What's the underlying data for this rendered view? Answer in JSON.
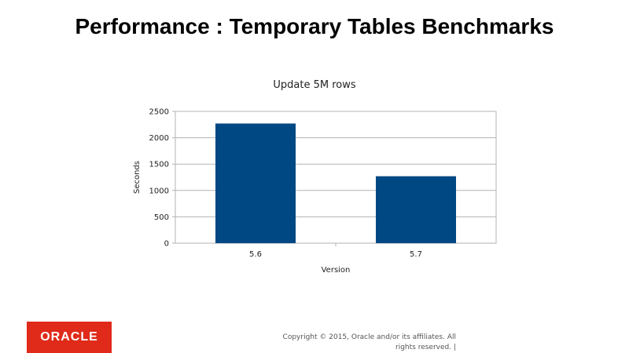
{
  "slide": {
    "title": "Performance : Temporary Tables Benchmarks"
  },
  "chart_data": {
    "type": "bar",
    "title": "Update 5M rows",
    "categories": [
      "5.6",
      "5.7"
    ],
    "values": [
      2270,
      1270
    ],
    "xlabel": "Version",
    "ylabel": "Seconds",
    "ylim": [
      0,
      2500
    ],
    "yticks": [
      "0",
      "500",
      "1000",
      "1500",
      "2000",
      "2500"
    ],
    "grid": true,
    "legend": "none",
    "bar_color": "#004884"
  },
  "footer": {
    "logo_text": "ORACLE",
    "logo_color": "#e02a1a",
    "copyright_line1": "Copyright © 2015, Oracle and/or its affiliates. All",
    "copyright_line2": "rights reserved. |"
  }
}
